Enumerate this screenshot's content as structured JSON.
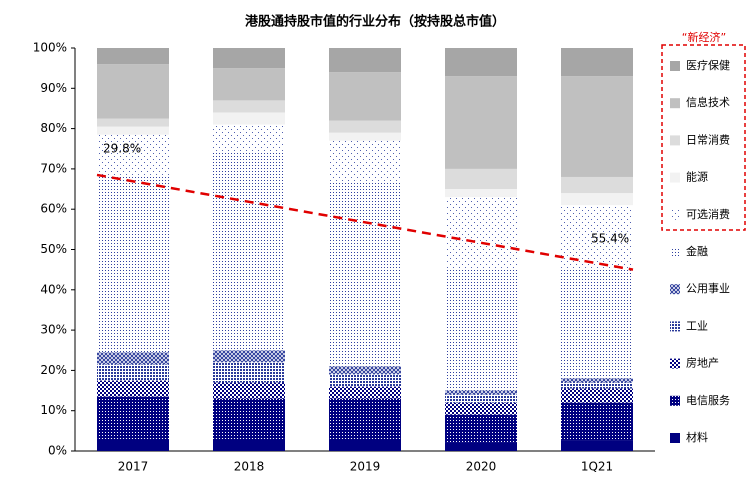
{
  "chart_data": {
    "type": "stacked-bar-100",
    "title": "港股通持股市值的行业分布（按持股总市值）",
    "categories": [
      "2017",
      "2018",
      "2019",
      "2020",
      "1Q21"
    ],
    "ylim": [
      0,
      100
    ],
    "yticks": [
      {
        "value": 0,
        "label": "0%"
      },
      {
        "value": 10,
        "label": "10%"
      },
      {
        "value": 20,
        "label": "20%"
      },
      {
        "value": 30,
        "label": "30%"
      },
      {
        "value": 40,
        "label": "40%"
      },
      {
        "value": 50,
        "label": "50%"
      },
      {
        "value": 60,
        "label": "60%"
      },
      {
        "value": 70,
        "label": "70%"
      },
      {
        "value": 80,
        "label": "80%"
      },
      {
        "value": 90,
        "label": "90%"
      },
      {
        "value": 100,
        "label": "100%"
      }
    ],
    "series": [
      {
        "name": "材料",
        "color": "#000080",
        "values": [
          3,
          3,
          3,
          2,
          2.5
        ]
      },
      {
        "name": "电信服务",
        "color": "#000080",
        "values": [
          10.5,
          10,
          10,
          7,
          9.5
        ]
      },
      {
        "name": "房地产",
        "color": "#000080",
        "values": [
          4,
          4,
          3,
          3,
          3.5
        ]
      },
      {
        "name": "工业",
        "color": "#2a3a9a",
        "values": [
          4,
          5,
          3,
          2,
          1.5
        ]
      },
      {
        "name": "公用事业",
        "color": "#2a3a9a",
        "values": [
          3,
          3,
          2,
          1,
          1
        ]
      },
      {
        "name": "金融",
        "color": "#3040a0",
        "values": [
          44,
          49,
          46,
          30,
          27
        ]
      },
      {
        "name": "可选消费",
        "color": "#5060b0",
        "values": [
          10,
          7,
          10,
          18,
          16
        ]
      },
      {
        "name": "能源",
        "color": "#f2f2f2",
        "values": [
          2,
          3,
          2,
          2,
          3
        ]
      },
      {
        "name": "日常消费",
        "color": "#dcdcdc",
        "values": [
          2,
          3,
          3,
          5,
          4
        ]
      },
      {
        "name": "信息技术",
        "color": "#c0c0c0",
        "values": [
          13.5,
          8,
          12,
          23,
          25
        ]
      },
      {
        "name": "医疗保健",
        "color": "#a6a6a6",
        "values": [
          4,
          5,
          6,
          7,
          7
        ]
      }
    ],
    "legend_group": "“新经济”",
    "annotations": [
      "29.8%",
      "55.4%"
    ]
  }
}
